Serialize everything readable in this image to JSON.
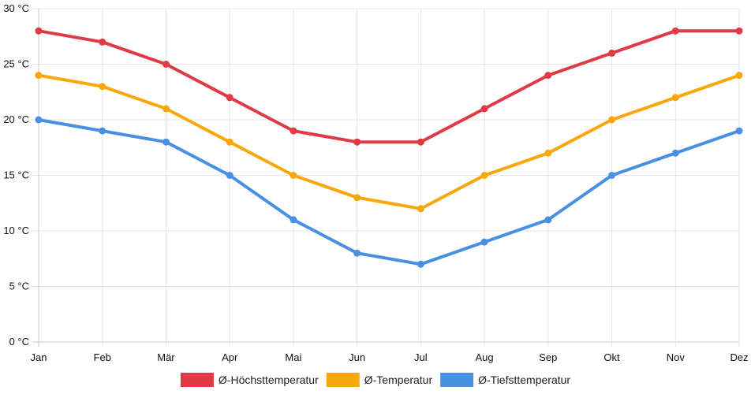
{
  "chart_data": {
    "type": "line",
    "title": "",
    "xlabel": "",
    "ylabel": "",
    "y_unit": " °C",
    "ylim": [
      0,
      30
    ],
    "yticks": [
      0,
      5,
      10,
      15,
      20,
      25,
      30
    ],
    "grid": true,
    "legend_position": "bottom",
    "categories": [
      "Jan",
      "Feb",
      "Mär",
      "Apr",
      "Mai",
      "Jun",
      "Jul",
      "Aug",
      "Sep",
      "Okt",
      "Nov",
      "Dez"
    ],
    "series": [
      {
        "name": "Ø-Höchsttemperatur",
        "color": "#e03a46",
        "values": [
          28,
          27,
          25,
          22,
          19,
          18,
          18,
          21,
          24,
          26,
          28,
          28
        ]
      },
      {
        "name": "Ø-Temperatur",
        "color": "#f8a70c",
        "values": [
          24,
          23,
          21,
          18,
          15,
          13,
          12,
          15,
          17,
          20,
          22,
          24
        ]
      },
      {
        "name": "Ø-Tiefsttemperatur",
        "color": "#4a90e2",
        "values": [
          20,
          19,
          18,
          15,
          11,
          8,
          7,
          9,
          11,
          15,
          17,
          19
        ]
      }
    ]
  }
}
